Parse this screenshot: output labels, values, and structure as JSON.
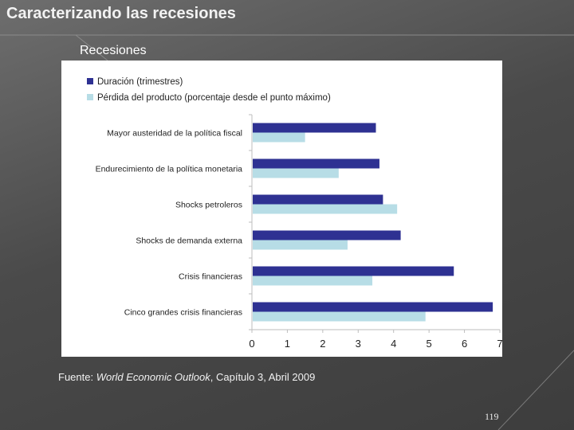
{
  "slide": {
    "title": "Caracterizando las recesiones",
    "chart_heading": "Recesiones",
    "source_prefix": "Fuente: ",
    "source_italic": "World Economic Outlook",
    "source_suffix": ", Capítulo 3, Abril 2009",
    "page_number": "119"
  },
  "chart_data": {
    "type": "bar",
    "orientation": "horizontal",
    "categories": [
      "Mayor austeridad de la política fiscal",
      "Endurecimiento de la política monetaria",
      "Shocks petroleros",
      "Shocks de demanda externa",
      "Crisis financieras",
      "Cinco grandes crisis financieras"
    ],
    "series": [
      {
        "name": "Duración (trimestres)",
        "color": "#2e3192",
        "values": [
          3.5,
          3.6,
          3.7,
          4.2,
          5.7,
          6.8
        ]
      },
      {
        "name": "Pérdida del producto (porcentaje desde el punto máximo)",
        "color": "#b7dde6",
        "values": [
          1.5,
          2.45,
          4.1,
          2.7,
          3.4,
          4.9
        ]
      }
    ],
    "xlim": [
      0,
      7
    ],
    "xticks": [
      "0",
      "1",
      "2",
      "3",
      "4",
      "5",
      "6",
      "7"
    ],
    "legend_position": "top-left",
    "grid": false
  }
}
